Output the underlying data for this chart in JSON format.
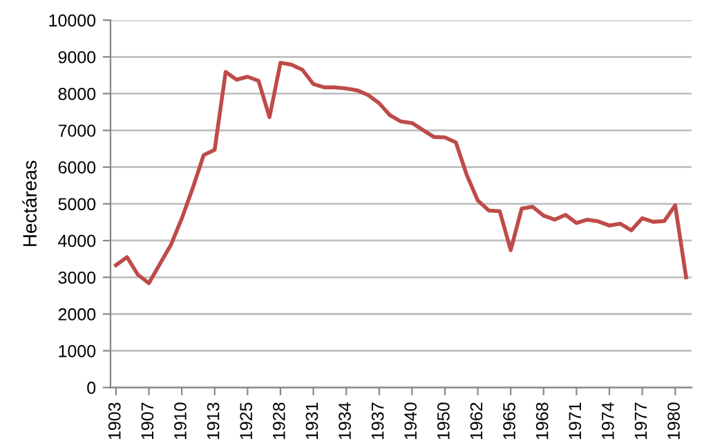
{
  "chart_data": {
    "type": "line",
    "ylabel": "Hectáreas",
    "categories": [
      "1903",
      null,
      null,
      "1907",
      null,
      null,
      "1910",
      null,
      null,
      "1913",
      null,
      null,
      "1925",
      null,
      null,
      "1928",
      null,
      null,
      "1931",
      null,
      null,
      "1934",
      null,
      null,
      "1937",
      null,
      null,
      "1940",
      null,
      null,
      "1950",
      null,
      null,
      "1962",
      null,
      null,
      "1965",
      null,
      null,
      "1968",
      null,
      null,
      "1971",
      null,
      null,
      "1974",
      null,
      null,
      "1977",
      null,
      null,
      "1980",
      null
    ],
    "series": [
      {
        "color": "#be4b48",
        "values": [
          3330,
          3550,
          3070,
          2840,
          3360,
          3880,
          4600,
          5430,
          6330,
          6470,
          8590,
          8380,
          8460,
          8350,
          7360,
          8840,
          8790,
          8650,
          8260,
          8170,
          8170,
          8140,
          8090,
          7960,
          7740,
          7410,
          7240,
          7200,
          7010,
          6820,
          6810,
          6670,
          5780,
          5090,
          4820,
          4800,
          3740,
          4870,
          4920,
          4680,
          4570,
          4700,
          4480,
          4570,
          4520,
          4410,
          4460,
          4280,
          4610,
          4510,
          4530,
          4960,
          3000
        ]
      }
    ],
    "ylim": [
      0,
      10000
    ],
    "yticks": [
      0,
      1000,
      2000,
      3000,
      4000,
      5000,
      6000,
      7000,
      8000,
      9000,
      10000
    ],
    "grid": "y",
    "marker": "none",
    "line_style": "solid"
  }
}
